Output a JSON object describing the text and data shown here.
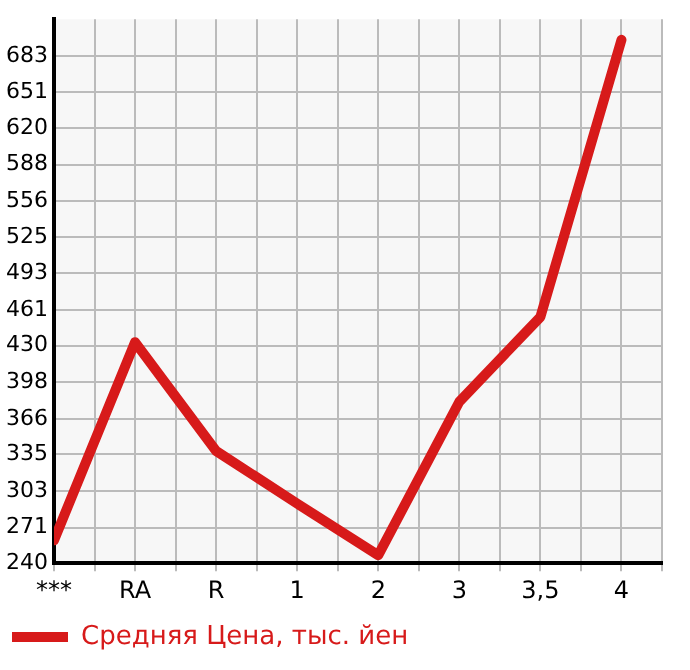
{
  "chart_data": {
    "type": "line",
    "categories": [
      "***",
      "RA",
      "R",
      "1",
      "2",
      "3",
      "3,5",
      "4"
    ],
    "series": [
      {
        "name": "Средняя Цена, тыс. йен",
        "color": "#d71a1a",
        "values": [
          260,
          433,
          338,
          292,
          247,
          381,
          455,
          697
        ]
      }
    ],
    "ylim": [
      240,
      715
    ],
    "yticks": [
      240,
      271,
      303,
      335,
      366,
      398,
      430,
      461,
      493,
      525,
      556,
      588,
      620,
      651,
      683
    ],
    "grid": true,
    "legend": "bottom left",
    "marker": "none",
    "line_style": "solid"
  }
}
